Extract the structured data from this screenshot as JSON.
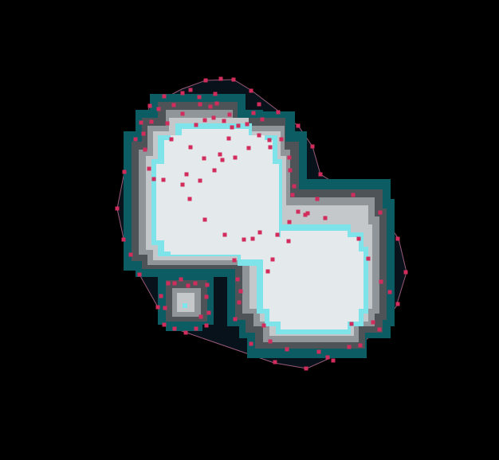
{
  "scene": {
    "background": "#000000",
    "layers": [
      {
        "name": "hull",
        "color": "#07121a"
      },
      {
        "name": "outer-band",
        "color": "#0c5d63"
      },
      {
        "name": "band-2",
        "color": "#4d5357"
      },
      {
        "name": "band-3",
        "color": "#8f9598"
      },
      {
        "name": "band-4",
        "color": "#c4c8ca"
      },
      {
        "name": "edge",
        "color": "#7fe4ea"
      },
      {
        "name": "core",
        "color": "#e4e9eb"
      }
    ],
    "hull_stroke_color": "#9a5a7a",
    "point_color": "#d12c5c",
    "point_count": 126
  }
}
